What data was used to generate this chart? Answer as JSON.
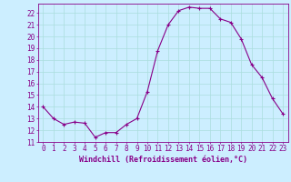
{
  "x": [
    0,
    1,
    2,
    3,
    4,
    5,
    6,
    7,
    8,
    9,
    10,
    11,
    12,
    13,
    14,
    15,
    16,
    17,
    18,
    19,
    20,
    21,
    22,
    23
  ],
  "y": [
    14,
    13,
    12.5,
    12.7,
    12.6,
    11.4,
    11.8,
    11.8,
    12.5,
    13,
    15.3,
    18.8,
    21,
    22.2,
    22.5,
    22.4,
    22.4,
    21.5,
    21.2,
    19.8,
    17.6,
    16.5,
    14.7,
    13.4
  ],
  "line_color": "#880088",
  "marker": "+",
  "marker_color": "#880088",
  "bg_color": "#cceeff",
  "grid_color": "#aadddd",
  "xlabel": "Windchill (Refroidissement éolien,°C)",
  "xlabel_color": "#880088",
  "tick_color": "#880088",
  "ylim": [
    11,
    22.8
  ],
  "xlim": [
    -0.5,
    23.5
  ],
  "yticks": [
    11,
    12,
    13,
    14,
    15,
    16,
    17,
    18,
    19,
    20,
    21,
    22
  ],
  "xticks": [
    0,
    1,
    2,
    3,
    4,
    5,
    6,
    7,
    8,
    9,
    10,
    11,
    12,
    13,
    14,
    15,
    16,
    17,
    18,
    19,
    20,
    21,
    22,
    23
  ],
  "font_size": 5.5,
  "label_font_size": 6.0
}
